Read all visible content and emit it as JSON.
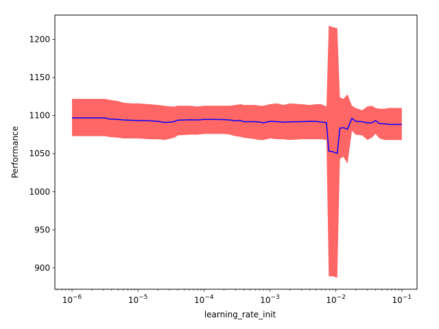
{
  "chart_data": {
    "type": "line",
    "title": "",
    "xlabel": "learning_rate_init",
    "ylabel": "Performance",
    "xscale": "log",
    "xlim": [
      5.5e-07,
      0.17
    ],
    "ylim": [
      872,
      1232
    ],
    "grid": false,
    "legend": "none",
    "colors": {
      "line": "#0000ff",
      "band": "#ff0000",
      "band_opacity": 0.6
    },
    "x_ticks": [
      {
        "value": 1e-06,
        "base": "10",
        "exp": "−6"
      },
      {
        "value": 1e-05,
        "base": "10",
        "exp": "−5"
      },
      {
        "value": 0.0001,
        "base": "10",
        "exp": "−4"
      },
      {
        "value": 0.001,
        "base": "10",
        "exp": "−3"
      },
      {
        "value": 0.01,
        "base": "10",
        "exp": "−2"
      },
      {
        "value": 0.1,
        "base": "10",
        "exp": "−1"
      }
    ],
    "y_ticks": [
      "900",
      "950",
      "1000",
      "1050",
      "1100",
      "1150",
      "1200"
    ],
    "series": [
      {
        "x": [
          1e-06,
          2e-06,
          3.2e-06,
          3.6e-06,
          5e-06,
          6e-06,
          8e-06,
          1e-05,
          1.5e-05,
          2e-05,
          2.5e-05,
          3.2e-05,
          3.6e-05,
          4e-05,
          6e-05,
          8e-05,
          0.0001,
          0.00014,
          0.0002,
          0.00025,
          0.0003,
          0.00036,
          0.0004,
          0.0006,
          0.0007,
          0.0008,
          0.001,
          0.0013,
          0.0016,
          0.002,
          0.003,
          0.004,
          0.005,
          0.006,
          0.0072,
          0.0078,
          0.009,
          0.0105,
          0.0115,
          0.013,
          0.015,
          0.0175,
          0.02,
          0.025,
          0.03,
          0.035,
          0.04,
          0.046,
          0.055,
          0.065,
          0.1
        ],
        "y": [
          1097,
          1097,
          1097,
          1095.5,
          1095,
          1094.3,
          1093.8,
          1093.5,
          1093.2,
          1092.5,
          1091,
          1091.5,
          1092.4,
          1094,
          1094.5,
          1094.3,
          1095,
          1095,
          1094.8,
          1094.2,
          1093.2,
          1093.5,
          1092.1,
          1092.0,
          1091.5,
          1090.5,
          1092.5,
          1092.0,
          1091.4,
          1091.8,
          1092.1,
          1092.5,
          1092.4,
          1091.6,
          1090.8,
          1053.5,
          1052.5,
          1050.5,
          1083.5,
          1084.2,
          1082.0,
          1096.5,
          1092.5,
          1092.0,
          1090.5,
          1090.5,
          1093.5,
          1089.5,
          1089.2,
          1088.5,
          1088.4
        ],
        "upper": [
          1122,
          1122,
          1122,
          1121,
          1119,
          1117,
          1116,
          1116,
          1115,
          1114,
          1113,
          1112,
          1112,
          1113,
          1113,
          1112,
          1113,
          1113,
          1113,
          1113,
          1114,
          1115,
          1114,
          1114,
          1113,
          1113,
          1115,
          1116,
          1114,
          1116,
          1115,
          1114,
          1115,
          1115,
          1112,
          1218,
          1216,
          1215,
          1124,
          1122,
          1128,
          1113,
          1110,
          1107,
          1112,
          1113,
          1110,
          1109,
          1109,
          1110,
          1110
        ],
        "lower": [
          1073,
          1073,
          1073,
          1072,
          1071,
          1070,
          1070,
          1070,
          1069,
          1069,
          1068,
          1070,
          1071,
          1074,
          1075,
          1075,
          1076,
          1076,
          1076,
          1075,
          1073,
          1072,
          1071,
          1069,
          1068,
          1068,
          1070,
          1069,
          1069,
          1068,
          1069,
          1069,
          1069,
          1069,
          1068,
          889,
          889,
          887,
          1043,
          1046,
          1037,
          1080,
          1075,
          1074,
          1068,
          1071,
          1076,
          1070,
          1068,
          1068,
          1068
        ]
      }
    ]
  }
}
